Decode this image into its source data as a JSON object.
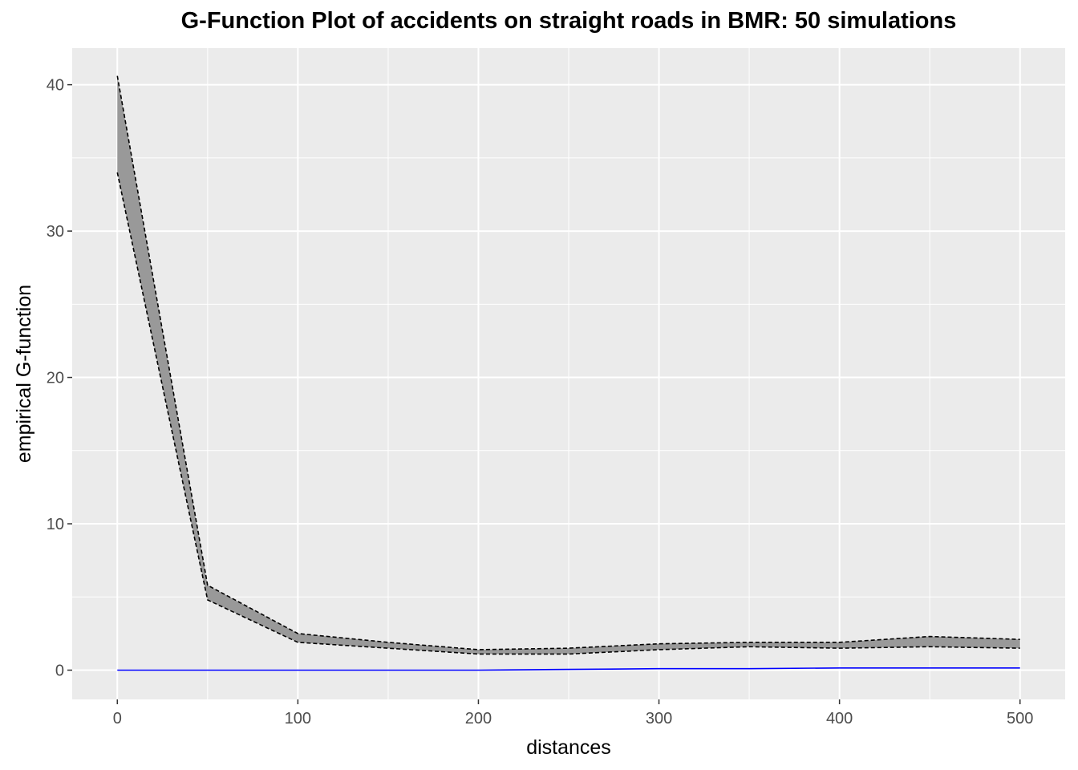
{
  "chart_data": {
    "type": "area",
    "title": "G-Function Plot of accidents on straight roads in BMR: 50 simulations",
    "xlabel": "distances",
    "ylabel": "empirical G-function",
    "xlim": [
      -25,
      525
    ],
    "ylim": [
      -2,
      42.5
    ],
    "x_ticks": [
      0,
      100,
      200,
      300,
      400,
      500
    ],
    "y_ticks": [
      0,
      10,
      20,
      30,
      40
    ],
    "grid": true,
    "legend": "none",
    "x": [
      0,
      50,
      100,
      150,
      200,
      250,
      300,
      350,
      400,
      450,
      500
    ],
    "series": [
      {
        "role": "envelope_upper",
        "style": "dashed",
        "color": "#000000",
        "values": [
          40.6,
          5.8,
          2.5,
          1.9,
          1.4,
          1.5,
          1.8,
          1.9,
          1.9,
          2.3,
          2.1
        ]
      },
      {
        "role": "envelope_lower",
        "style": "dashed",
        "color": "#000000",
        "values": [
          34.0,
          4.8,
          1.9,
          1.5,
          1.1,
          1.1,
          1.4,
          1.6,
          1.5,
          1.6,
          1.5
        ]
      },
      {
        "role": "observed",
        "style": "solid",
        "color": "#0000ff",
        "values": [
          0.0,
          0.0,
          0.0,
          0.0,
          0.0,
          0.05,
          0.1,
          0.1,
          0.15,
          0.15,
          0.15
        ]
      }
    ],
    "colors": {
      "panel_background": "#ebebeb",
      "grid": "#ffffff",
      "envelope_fill": "#999999"
    }
  }
}
